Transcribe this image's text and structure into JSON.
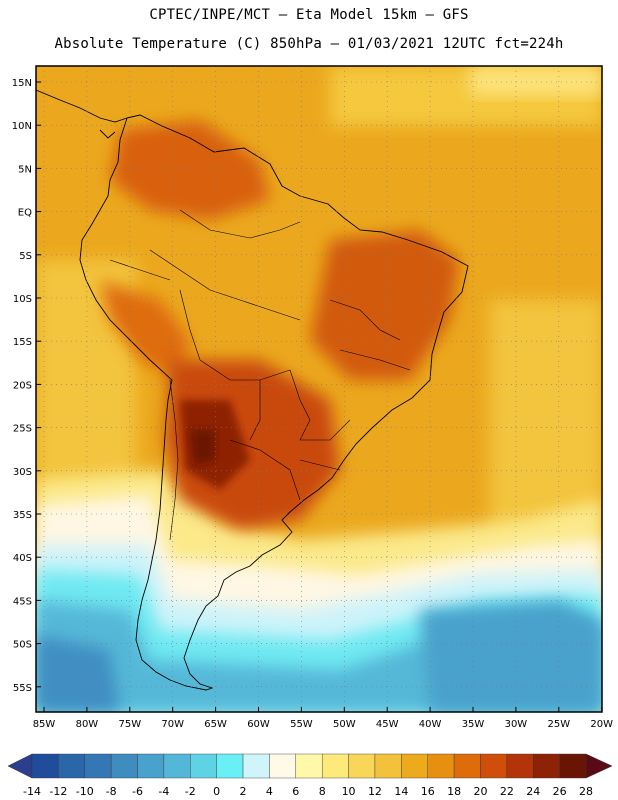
{
  "header": {
    "line1": "CPTEC/INPE/MCT  –  Eta Model 15km – GFS",
    "line2": "Absolute Temperature (C) 850hPa – 01/03/2021 12UTC fct=224h"
  },
  "axes": {
    "lat_labels": [
      "15N",
      "10N",
      "5N",
      "EQ",
      "5S",
      "10S",
      "15S",
      "20S",
      "25S",
      "30S",
      "35S",
      "40S",
      "45S",
      "50S",
      "55S"
    ],
    "lon_labels": [
      "85W",
      "80W",
      "75W",
      "70W",
      "65W",
      "60W",
      "55W",
      "50W",
      "45W",
      "40W",
      "35W",
      "30W",
      "25W",
      "20W"
    ]
  },
  "colorbar": {
    "ticks": [
      "-14",
      "-12",
      "-10",
      "-8",
      "-6",
      "-4",
      "-2",
      "0",
      "2",
      "4",
      "6",
      "8",
      "10",
      "12",
      "14",
      "16",
      "18",
      "20",
      "22",
      "24",
      "26",
      "28"
    ],
    "colors": [
      "#2b3f8e",
      "#1f4d9c",
      "#2a66a8",
      "#3477b4",
      "#3e8cc0",
      "#49a2cc",
      "#55b7d8",
      "#5ed3e4",
      "#6af0f4",
      "#cff4fa",
      "#fff9e8",
      "#fff8a8",
      "#fdea7a",
      "#f8d65a",
      "#f2c23c",
      "#ebab1c",
      "#e68f10",
      "#df6c0a",
      "#cf4e0a",
      "#b33408",
      "#8e2206",
      "#6a1404",
      "#5a0a14"
    ]
  }
}
